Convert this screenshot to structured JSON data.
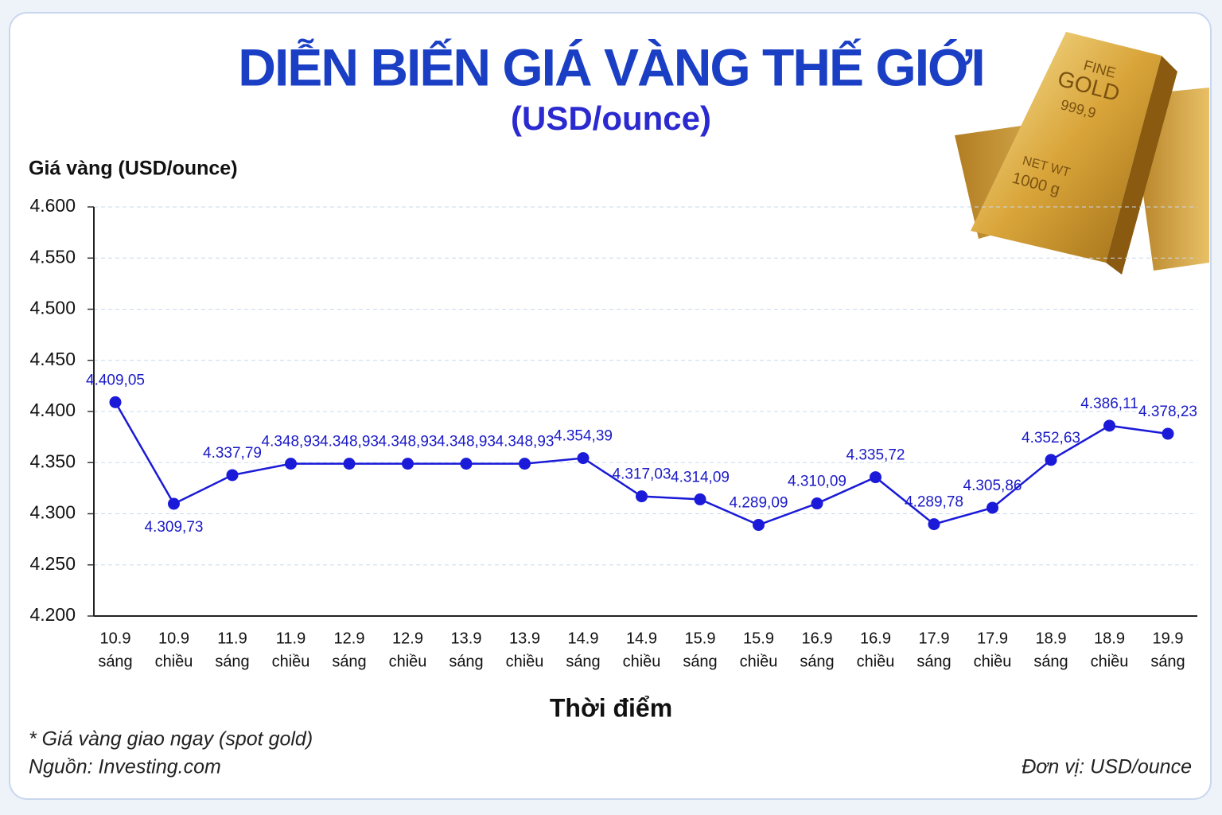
{
  "chart_data": {
    "type": "line",
    "title": "DIỄN BIẾN GIÁ VÀNG THẾ GIỚI",
    "subtitle": "(USD/ounce)",
    "y_axis_label": "Giá vàng (USD/ounce)",
    "x_axis_label": "Thời điểm",
    "note": "* Giá vàng giao ngay (spot gold)",
    "source": "Nguồn: Investing.com",
    "unit": "Đơn vị: USD/ounce",
    "categories": [
      [
        "10.9",
        "sáng"
      ],
      [
        "10.9",
        "chiều"
      ],
      [
        "11.9",
        "sáng"
      ],
      [
        "11.9",
        "chiều"
      ],
      [
        "12.9",
        "sáng"
      ],
      [
        "12.9",
        "chiều"
      ],
      [
        "13.9",
        "sáng"
      ],
      [
        "13.9",
        "chiều"
      ],
      [
        "14.9",
        "sáng"
      ],
      [
        "14.9",
        "chiều"
      ],
      [
        "15.9",
        "sáng"
      ],
      [
        "15.9",
        "chiều"
      ],
      [
        "16.9",
        "sáng"
      ],
      [
        "16.9",
        "chiều"
      ],
      [
        "17.9",
        "sáng"
      ],
      [
        "17.9",
        "chiều"
      ],
      [
        "18.9",
        "sáng"
      ],
      [
        "18.9",
        "chiều"
      ],
      [
        "19.9",
        "sáng"
      ]
    ],
    "values": [
      4409.05,
      4309.73,
      4337.79,
      4348.93,
      4348.93,
      4348.93,
      4348.93,
      4348.93,
      4354.39,
      4317.03,
      4314.09,
      4289.09,
      4310.09,
      4335.72,
      4289.78,
      4305.86,
      4352.63,
      4386.11,
      4378.23
    ],
    "value_labels": [
      "4.409,05",
      "4.309,73",
      "4.337,79",
      "4.348,93",
      "4.348,93",
      "4.348,93",
      "4.348,93",
      "4.348,93",
      "4.354,39",
      "4.317,03",
      "4.314,09",
      "4.289,09",
      "4.310,09",
      "4.335,72",
      "4.289,78",
      "4.305,86",
      "4.352,63",
      "4.386,11",
      "4.378,23"
    ],
    "color": "#1a1ad8",
    "ylim": [
      4200,
      4600
    ],
    "yticks": [
      {
        "value": 4200,
        "label": "4.200"
      },
      {
        "value": 4250,
        "label": "4.250"
      },
      {
        "value": 4300,
        "label": "4.300"
      },
      {
        "value": 4350,
        "label": "4.350"
      },
      {
        "value": 4400,
        "label": "4.400"
      },
      {
        "value": 4450,
        "label": "4.450"
      },
      {
        "value": 4500,
        "label": "4.500"
      },
      {
        "value": 4550,
        "label": "4.550"
      },
      {
        "value": 4600,
        "label": "4.600"
      }
    ],
    "grid": true
  },
  "illustration": {
    "texts": [
      "FINE",
      "GOLD",
      "999,9",
      "NET WT",
      "1000 g"
    ]
  }
}
